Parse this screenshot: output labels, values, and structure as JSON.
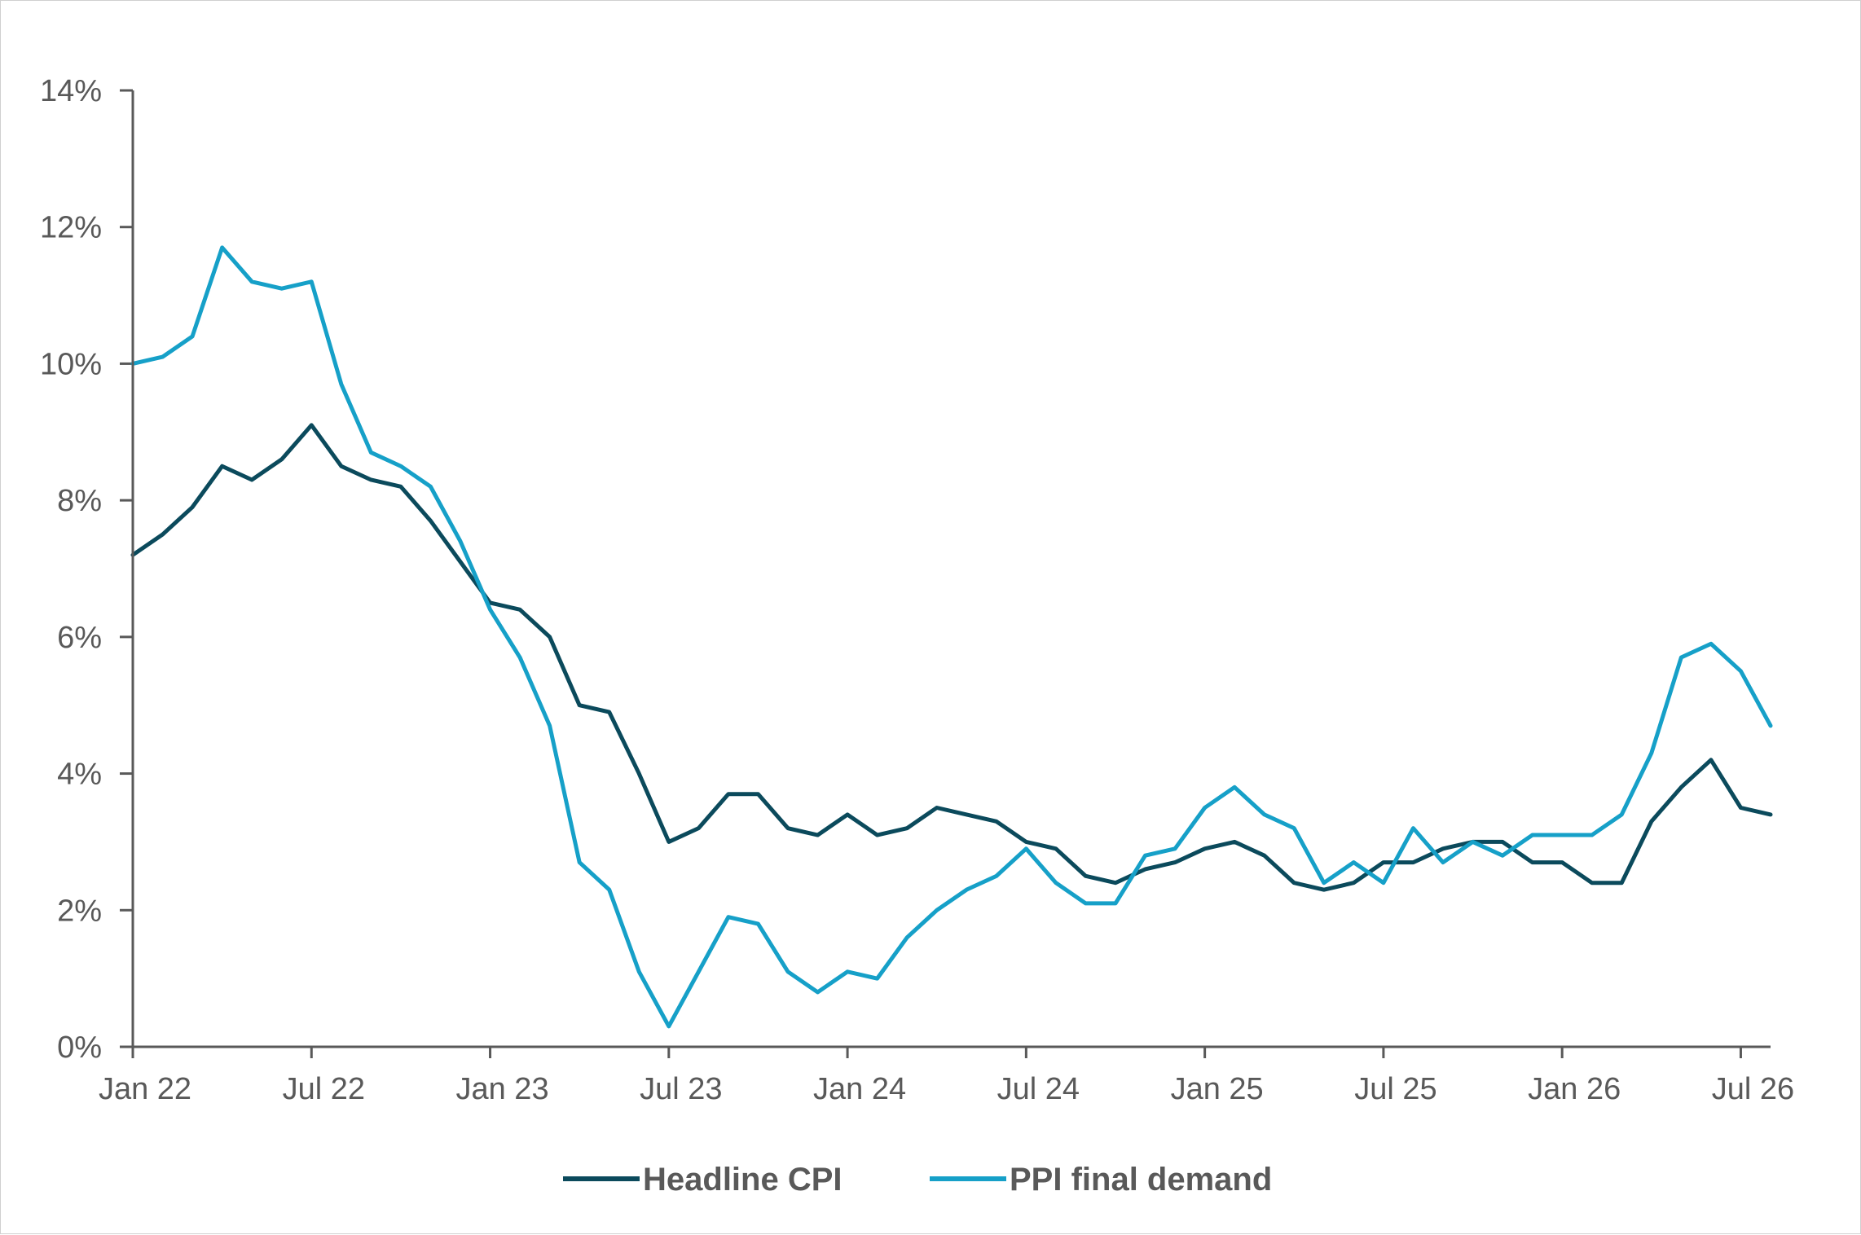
{
  "chart_data": {
    "type": "line",
    "title": "",
    "xlabel": "",
    "ylabel": "",
    "x_tick_labels": [
      "Jan 22",
      "Jul 22",
      "Jan 23",
      "Jul 23",
      "Jan 24",
      "Jul 24",
      "Jan 25",
      "Jul 25",
      "Jan 26",
      "Jul 26"
    ],
    "y_tick_labels": [
      "0%",
      "2%",
      "4%",
      "6%",
      "8%",
      "10%",
      "12%",
      "14%"
    ],
    "ylim": [
      0,
      14
    ],
    "x_start": "2022-01",
    "x_end": "2026-08",
    "grid": false,
    "legend_position": "bottom",
    "colors": {
      "axis": "#595959",
      "cpi": "#0b4a5c",
      "ppi": "#16a0c8"
    },
    "series": [
      {
        "name": "Headline CPI",
        "color": "#0b4a5c",
        "values": [
          7.2,
          7.5,
          7.9,
          8.5,
          8.3,
          8.6,
          9.1,
          8.5,
          8.3,
          8.2,
          7.7,
          7.1,
          6.5,
          6.4,
          6.0,
          5.0,
          4.9,
          4.0,
          3.0,
          3.2,
          3.7,
          3.7,
          3.2,
          3.1,
          3.4,
          3.1,
          3.2,
          3.5,
          3.4,
          3.3,
          3.0,
          2.9,
          2.5,
          2.4,
          2.6,
          2.7,
          2.9,
          3.0,
          2.8,
          2.4,
          2.3,
          2.4,
          2.7,
          2.7,
          2.9,
          3.0,
          3.0,
          2.7,
          2.7,
          2.4,
          2.4,
          3.3,
          3.8,
          4.2,
          3.5,
          3.4
        ]
      },
      {
        "name": "PPI final demand",
        "color": "#16a0c8",
        "values": [
          10.0,
          10.1,
          10.4,
          11.7,
          11.2,
          11.1,
          11.2,
          9.7,
          8.7,
          8.5,
          8.2,
          7.4,
          6.4,
          5.7,
          4.7,
          2.7,
          2.3,
          1.1,
          0.3,
          1.1,
          1.9,
          1.8,
          1.1,
          0.8,
          1.1,
          1.0,
          1.6,
          2.0,
          2.3,
          2.5,
          2.9,
          2.4,
          2.1,
          2.1,
          2.8,
          2.9,
          3.5,
          3.8,
          3.4,
          3.2,
          2.4,
          2.7,
          2.4,
          3.2,
          2.7,
          3.0,
          2.8,
          3.1,
          3.1,
          3.1,
          3.4,
          4.3,
          5.7,
          5.9,
          5.5,
          4.7
        ]
      }
    ]
  }
}
